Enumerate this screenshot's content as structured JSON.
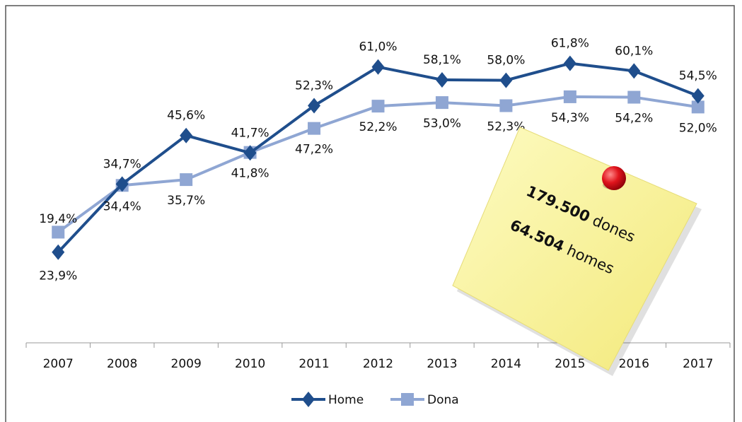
{
  "chart_data": {
    "type": "line",
    "categories": [
      "2007",
      "2008",
      "2009",
      "2010",
      "2011",
      "2012",
      "2013",
      "2014",
      "2015",
      "2016",
      "2017"
    ],
    "series": [
      {
        "name": "Home",
        "color": "#1f4e8c",
        "marker": "diamond",
        "values": [
          19.4,
          34.7,
          45.6,
          41.7,
          52.3,
          61.0,
          58.1,
          58.0,
          61.8,
          60.1,
          54.5
        ],
        "value_labels": [
          "19,4%",
          "34,7%",
          "45,6%",
          "41,7%",
          "52,3%",
          "61,0%",
          "58,1%",
          "58,0%",
          "61,8%",
          "60,1%",
          "54,5%"
        ]
      },
      {
        "name": "Dona",
        "color": "#8fa6d3",
        "marker": "square",
        "values": [
          23.9,
          34.4,
          35.7,
          41.8,
          47.2,
          52.2,
          53.0,
          52.3,
          54.3,
          54.2,
          52.0
        ],
        "value_labels": [
          "23,9%",
          "34,4%",
          "35,7%",
          "41,8%",
          "47,2%",
          "52,2%",
          "53,0%",
          "52,3%",
          "54,3%",
          "54,2%",
          "52,0%"
        ]
      }
    ],
    "legend": "bottom",
    "annotations": [
      {
        "number": "179.500",
        "word": "dones"
      },
      {
        "number": "64.504",
        "word": "homes"
      }
    ]
  }
}
